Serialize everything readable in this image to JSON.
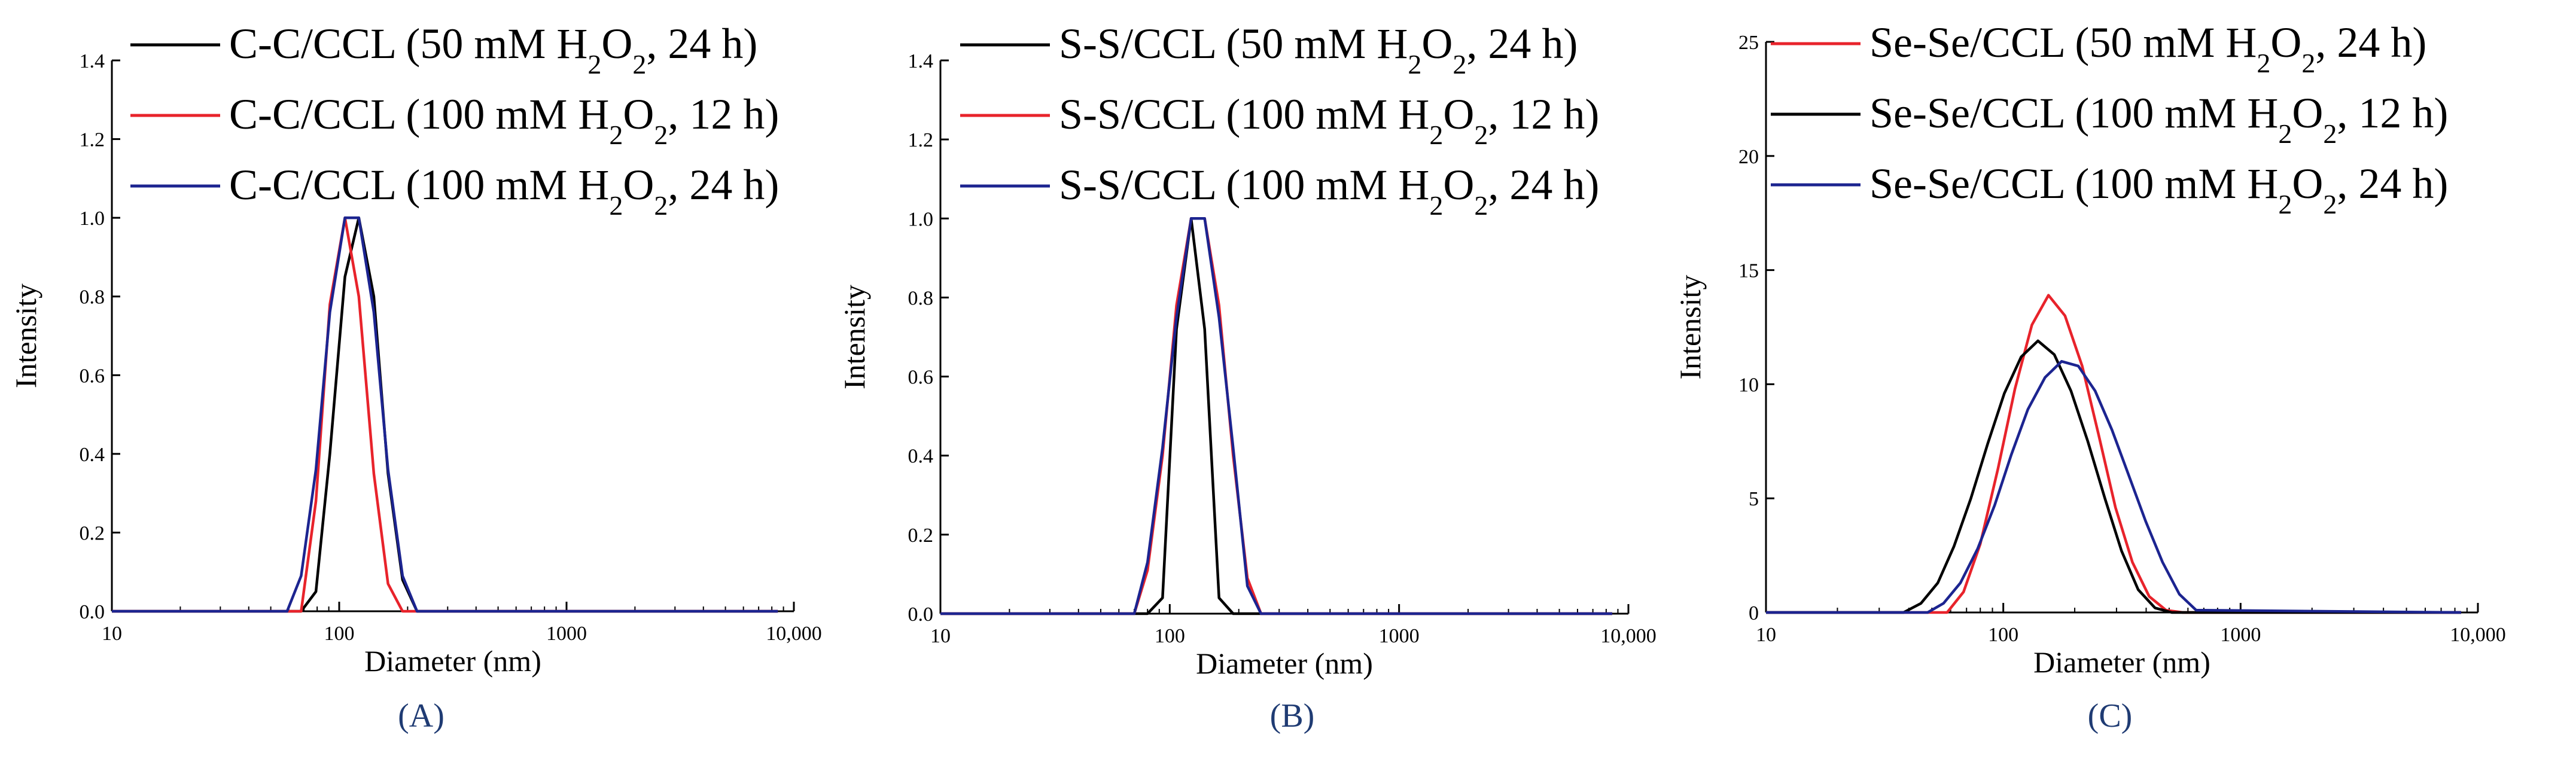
{
  "figure": {
    "panel_labels": [
      "(A)",
      "(B)",
      "(C)"
    ]
  },
  "chart_data": [
    {
      "type": "line",
      "panel": "(A)",
      "xscale": "log",
      "xlabel": "Diameter (nm)",
      "ylabel": "Intensity",
      "xlim": [
        10,
        10000
      ],
      "ylim": [
        0,
        1.4
      ],
      "xticks": [
        10,
        100,
        1000,
        10000
      ],
      "xtick_labels": [
        "10",
        "100",
        "1000",
        "10,000"
      ],
      "yticks": [
        0,
        0.2,
        0.4,
        0.6,
        0.8,
        1.0,
        1.2,
        1.4
      ],
      "ytick_labels": [
        "0.0",
        "0.2",
        "0.4",
        "0.6",
        "0.8",
        "1.0",
        "1.2",
        "1.4"
      ],
      "legend_position": "top-right",
      "series": [
        {
          "name_parts": [
            "C-C/CCL (50 mM H",
            "2",
            "O",
            "2",
            ", 24 h)"
          ],
          "color": "#000000",
          "x": [
            10,
            68,
            79,
            91,
            106,
            122,
            142,
            164,
            190,
            220,
            8500
          ],
          "y": [
            0,
            0,
            0.05,
            0.4,
            0.85,
            1.0,
            0.8,
            0.35,
            0.08,
            0,
            0
          ]
        },
        {
          "name_parts": [
            "C-C/CCL (100 mM H",
            "2",
            "O",
            "2",
            ", 12 h)"
          ],
          "color": "#e8232b",
          "x": [
            10,
            68,
            79,
            91,
            106,
            122,
            142,
            164,
            190,
            8500
          ],
          "y": [
            0,
            0,
            0.28,
            0.78,
            1.0,
            0.8,
            0.35,
            0.07,
            0,
            0
          ]
        },
        {
          "name_parts": [
            "C-C/CCL (100 mM H",
            "2",
            "O",
            "2",
            ", 24 h)"
          ],
          "color": "#1c2490",
          "x": [
            10,
            59,
            68,
            79,
            91,
            106,
            122,
            142,
            164,
            190,
            220,
            8500
          ],
          "y": [
            0,
            0,
            0.09,
            0.36,
            0.76,
            1.0,
            1.0,
            0.76,
            0.36,
            0.09,
            0,
            0
          ]
        }
      ]
    },
    {
      "type": "line",
      "panel": "(B)",
      "xscale": "log",
      "xlabel": "Diameter (nm)",
      "ylabel": "Intensity",
      "xlim": [
        10,
        10000
      ],
      "ylim": [
        0,
        1.4
      ],
      "xticks": [
        10,
        100,
        1000,
        10000
      ],
      "xtick_labels": [
        "10",
        "100",
        "1000",
        "10,000"
      ],
      "yticks": [
        0,
        0.2,
        0.4,
        0.6,
        0.8,
        1.0,
        1.2,
        1.4
      ],
      "ytick_labels": [
        "0.0",
        "0.2",
        "0.4",
        "0.6",
        "0.8",
        "1.0",
        "1.2",
        "1.4"
      ],
      "legend_position": "top-right",
      "series": [
        {
          "name_parts": [
            "S-S/CCL (50 mM H",
            "2",
            "O",
            "2",
            ", 24 h)"
          ],
          "color": "#000000",
          "x": [
            10,
            80,
            93,
            107,
            124,
            142,
            164,
            189,
            8500
          ],
          "y": [
            0,
            0,
            0.04,
            0.72,
            1.0,
            0.72,
            0.04,
            0,
            0
          ]
        },
        {
          "name_parts": [
            "S-S/CCL (100 mM H",
            "2",
            "O",
            "2",
            ", 12 h)"
          ],
          "color": "#e8232b",
          "x": [
            10,
            70,
            80,
            93,
            107,
            124,
            142,
            164,
            189,
            218,
            250,
            8500
          ],
          "y": [
            0,
            0,
            0.11,
            0.4,
            0.78,
            1.0,
            1.0,
            0.78,
            0.4,
            0.09,
            0,
            0
          ]
        },
        {
          "name_parts": [
            "S-S/CCL (100 mM H",
            "2",
            "O",
            "2",
            ", 24 h)"
          ],
          "color": "#1c2490",
          "x": [
            10,
            70,
            80,
            93,
            107,
            124,
            142,
            164,
            189,
            218,
            250,
            8500
          ],
          "y": [
            0,
            0,
            0.13,
            0.42,
            0.75,
            1.0,
            1.0,
            0.75,
            0.42,
            0.07,
            0,
            0
          ]
        }
      ]
    },
    {
      "type": "line",
      "panel": "(C)",
      "xscale": "log",
      "xlabel": "Diameter (nm)",
      "ylabel": "Intensity",
      "xlim": [
        10,
        10000
      ],
      "ylim": [
        0,
        25
      ],
      "xticks": [
        10,
        100,
        1000,
        10000
      ],
      "xtick_labels": [
        "10",
        "100",
        "1000",
        "10,000"
      ],
      "yticks": [
        0,
        5,
        10,
        15,
        20,
        25
      ],
      "ytick_labels": [
        "0",
        "5",
        "10",
        "15",
        "20",
        "25"
      ],
      "legend_position": "top-right",
      "series": [
        {
          "name_parts": [
            "Se-Se/CCL (50 mM H",
            "2",
            "O",
            "2",
            ", 24 h)"
          ],
          "color": "#e8232b",
          "x": [
            10,
            58,
            68,
            80,
            95,
            112,
            132,
            155,
            182,
            215,
            252,
            297,
            350,
            412,
            485,
            570,
            8500
          ],
          "y": [
            0,
            0,
            0.9,
            3.0,
            6.3,
            9.8,
            12.6,
            13.9,
            13.0,
            10.8,
            7.8,
            4.6,
            2.2,
            0.7,
            0.1,
            0,
            0
          ]
        },
        {
          "name_parts": [
            "Se-Se/CCL (100 mM H",
            "2",
            "O",
            "2",
            ", 12 h)"
          ],
          "color": "#000000",
          "x": [
            10,
            38,
            45,
            53,
            62,
            73,
            86,
            101,
            119,
            140,
            164,
            193,
            227,
            268,
            315,
            370,
            436,
            513,
            8500
          ],
          "y": [
            0,
            0,
            0.4,
            1.3,
            2.9,
            5.0,
            7.4,
            9.6,
            11.2,
            11.9,
            11.3,
            9.7,
            7.5,
            5.0,
            2.7,
            1.0,
            0.2,
            0,
            0
          ]
        },
        {
          "name_parts": [
            "Se-Se/CCL (100 mM H",
            "2",
            "O",
            "2",
            ", 24 h)"
          ],
          "color": "#1c2490",
          "x": [
            10,
            48,
            56,
            66,
            78,
            92,
            108,
            127,
            150,
            176,
            207,
            244,
            287,
            338,
            398,
            469,
            552,
            650,
            8500
          ],
          "y": [
            0,
            0,
            0.4,
            1.3,
            2.8,
            4.7,
            6.9,
            8.9,
            10.3,
            11.0,
            10.8,
            9.7,
            8.0,
            6.0,
            4.0,
            2.2,
            0.8,
            0.1,
            0
          ]
        }
      ]
    }
  ]
}
